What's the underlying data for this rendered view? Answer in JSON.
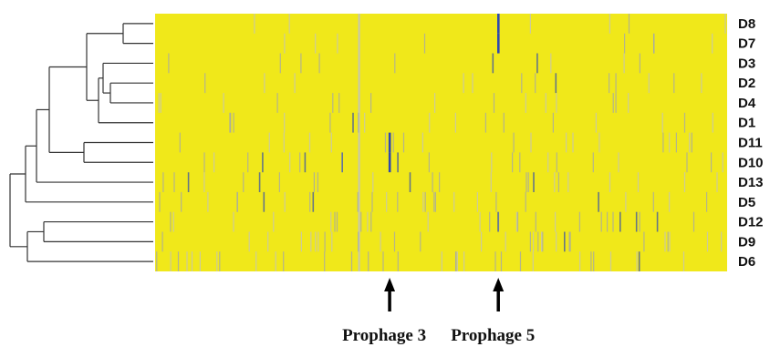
{
  "chart_data": {
    "type": "heatmap",
    "title": "",
    "rows": [
      "D8",
      "D7",
      "D3",
      "D2",
      "D4",
      "D1",
      "D11",
      "D10",
      "D13",
      "D5",
      "D12",
      "D9",
      "D6"
    ],
    "colors": {
      "background": "#f0e81a",
      "variant_light": "#bdbfd0",
      "variant_mid": "#9aa0bc",
      "variant_dark": "#3a52a8",
      "dendrogram": "#333333",
      "arrow": "#000000"
    },
    "highlights": [
      {
        "row": "D8",
        "column_fraction": 0.6,
        "color": "#2f48b0"
      },
      {
        "row": "D7",
        "column_fraction": 0.6,
        "color": "#2f48b0"
      },
      {
        "row": "D11",
        "column_fraction": 0.41,
        "color": "#2f48b0"
      },
      {
        "row": "D10",
        "column_fraction": 0.41,
        "color": "#2f48b0"
      }
    ],
    "annotations": [
      {
        "label": "Prophage 3",
        "column_fraction": 0.41
      },
      {
        "label": "Prophage 5",
        "column_fraction": 0.6
      }
    ],
    "dendrogram": "hierarchical clustering of rows"
  }
}
